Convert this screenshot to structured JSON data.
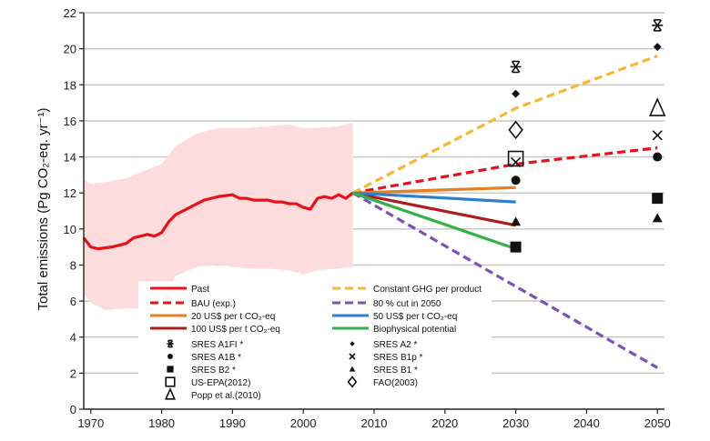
{
  "chart_data": {
    "type": "line",
    "ylabel": "Total emissions (Pg CO₂-eq. yr⁻¹)",
    "xlim": [
      1969,
      2051
    ],
    "ylim": [
      0,
      22
    ],
    "xticks": [
      1970,
      1980,
      1990,
      2000,
      2010,
      2020,
      2030,
      2040,
      2050
    ],
    "yticks": [
      0,
      2,
      4,
      6,
      8,
      10,
      12,
      14,
      16,
      18,
      20,
      22
    ],
    "grid": "horizontal",
    "past_band": {
      "x": [
        1969,
        1970,
        1972,
        1975,
        1978,
        1980,
        1982,
        1985,
        1988,
        1990,
        1992,
        1995,
        1998,
        2000,
        2002,
        2005,
        2007
      ],
      "upper": [
        12.8,
        12.5,
        12.6,
        12.8,
        13.3,
        13.6,
        14.6,
        15.3,
        15.6,
        15.6,
        15.6,
        15.7,
        15.8,
        15.6,
        15.6,
        15.7,
        15.9
      ],
      "lower": [
        6.4,
        5.9,
        5.5,
        5.6,
        5.6,
        5.8,
        7.4,
        7.9,
        8.0,
        7.9,
        7.8,
        7.8,
        7.7,
        7.5,
        7.7,
        7.8,
        7.9
      ],
      "color": "#fcdcdc"
    },
    "series": [
      {
        "name": "Past",
        "color": "#e8101a",
        "dash": "solid",
        "x": [
          1969,
          1970,
          1971,
          1972,
          1973,
          1974,
          1975,
          1976,
          1977,
          1978,
          1979,
          1980,
          1981,
          1982,
          1983,
          1984,
          1985,
          1986,
          1987,
          1988,
          1989,
          1990,
          1991,
          1992,
          1993,
          1994,
          1995,
          1996,
          1997,
          1998,
          1999,
          2000,
          2001,
          2002,
          2003,
          2004,
          2005,
          2006,
          2007
        ],
        "values": [
          9.5,
          9.0,
          8.9,
          8.95,
          9.0,
          9.1,
          9.2,
          9.5,
          9.6,
          9.7,
          9.6,
          9.8,
          10.4,
          10.8,
          11.0,
          11.2,
          11.4,
          11.6,
          11.7,
          11.8,
          11.85,
          11.9,
          11.7,
          11.7,
          11.6,
          11.6,
          11.6,
          11.5,
          11.5,
          11.4,
          11.4,
          11.2,
          11.1,
          11.7,
          11.8,
          11.7,
          11.9,
          11.7,
          12.0
        ]
      },
      {
        "name": "BAU (exp.)",
        "color": "#e8101a",
        "dash": "dashed",
        "x": [
          2007,
          2030,
          2050
        ],
        "values": [
          12.0,
          13.6,
          14.5
        ]
      },
      {
        "name": "20 US$ per t CO₂-eq",
        "color": "#e67e22",
        "dash": "solid",
        "x": [
          2007,
          2030
        ],
        "values": [
          12.0,
          12.3
        ]
      },
      {
        "name": "100 US$ per t CO₂-eq",
        "color": "#b01c1c",
        "dash": "solid",
        "x": [
          2007,
          2030
        ],
        "values": [
          12.0,
          10.2
        ]
      },
      {
        "name": "Constant GHG per product",
        "color": "#f7b733",
        "dash": "dashed",
        "x": [
          2007,
          2030,
          2050
        ],
        "values": [
          12.0,
          16.7,
          19.6
        ]
      },
      {
        "name": "80 % cut in 2050",
        "color": "#7b52b5",
        "dash": "dashed",
        "x": [
          2007,
          2050
        ],
        "values": [
          12.0,
          2.3
        ]
      },
      {
        "name": "50 US$ per t CO₂-eq",
        "color": "#2f7fd1",
        "dash": "solid",
        "x": [
          2007,
          2030
        ],
        "values": [
          12.0,
          11.5
        ]
      },
      {
        "name": "Biophysical potential",
        "color": "#34b24a",
        "dash": "solid",
        "x": [
          2007,
          2030
        ],
        "values": [
          12.0,
          8.9
        ]
      }
    ],
    "scatter": [
      {
        "name": "SRES A1FI *",
        "symbol": "asterisk",
        "points": [
          [
            2030,
            19.0
          ],
          [
            2050,
            21.3
          ]
        ]
      },
      {
        "name": "SRES A2 *",
        "symbol": "small-diamond",
        "points": [
          [
            2030,
            17.5
          ],
          [
            2050,
            20.1
          ]
        ]
      },
      {
        "name": "SRES A1B *",
        "symbol": "circle",
        "points": [
          [
            2030,
            12.7
          ],
          [
            2050,
            14.0
          ]
        ]
      },
      {
        "name": "SRES B1p *",
        "symbol": "x",
        "points": [
          [
            2030,
            13.7
          ],
          [
            2050,
            15.2
          ]
        ]
      },
      {
        "name": "SRES B2 *",
        "symbol": "square",
        "points": [
          [
            2030,
            9.0
          ],
          [
            2050,
            11.7
          ]
        ]
      },
      {
        "name": "SRES B1 *",
        "symbol": "triangle",
        "points": [
          [
            2030,
            10.4
          ],
          [
            2050,
            10.6
          ]
        ]
      },
      {
        "name": "US-EPA(2012)",
        "symbol": "open-square",
        "points": [
          [
            2030,
            13.9
          ]
        ]
      },
      {
        "name": "FAO(2003)",
        "symbol": "open-diamond",
        "points": [
          [
            2030,
            15.5
          ]
        ]
      },
      {
        "name": "Popp et al.(2010)",
        "symbol": "open-triangle",
        "points": [
          [
            2050,
            16.7
          ]
        ]
      }
    ],
    "legend": {
      "placement": "lower-left inside plot",
      "entries": [
        {
          "label": "Past",
          "kind": "line",
          "color": "#e8101a",
          "dash": "solid"
        },
        {
          "label": "Constant GHG per product",
          "kind": "line",
          "color": "#f7b733",
          "dash": "dashed"
        },
        {
          "label": "BAU (exp.)",
          "kind": "line",
          "color": "#e8101a",
          "dash": "dashed"
        },
        {
          "label": "80 % cut in 2050",
          "kind": "line",
          "color": "#7b52b5",
          "dash": "dashed"
        },
        {
          "label": "20 US$ per t CO₂-eq",
          "kind": "line",
          "color": "#e67e22",
          "dash": "solid"
        },
        {
          "label": "50 US$ per t CO₂-eq",
          "kind": "line",
          "color": "#2f7fd1",
          "dash": "solid"
        },
        {
          "label": "100 US$ per t CO₂-eq",
          "kind": "line",
          "color": "#b01c1c",
          "dash": "solid"
        },
        {
          "label": "Biophysical potential",
          "kind": "line",
          "color": "#34b24a",
          "dash": "solid"
        },
        {
          "label": "SRES A1FI *",
          "kind": "marker",
          "symbol": "asterisk"
        },
        {
          "label": "SRES A2 *",
          "kind": "marker",
          "symbol": "small-diamond"
        },
        {
          "label": "SRES A1B *",
          "kind": "marker",
          "symbol": "circle"
        },
        {
          "label": "SRES B1p *",
          "kind": "marker",
          "symbol": "x"
        },
        {
          "label": "SRES B2 *",
          "kind": "marker",
          "symbol": "square"
        },
        {
          "label": "SRES B1 *",
          "kind": "marker",
          "symbol": "triangle"
        },
        {
          "label": "US-EPA(2012)",
          "kind": "marker",
          "symbol": "open-square"
        },
        {
          "label": "FAO(2003)",
          "kind": "marker",
          "symbol": "open-diamond"
        },
        {
          "label": "Popp et al.(2010)",
          "kind": "marker",
          "symbol": "open-triangle"
        }
      ]
    }
  }
}
